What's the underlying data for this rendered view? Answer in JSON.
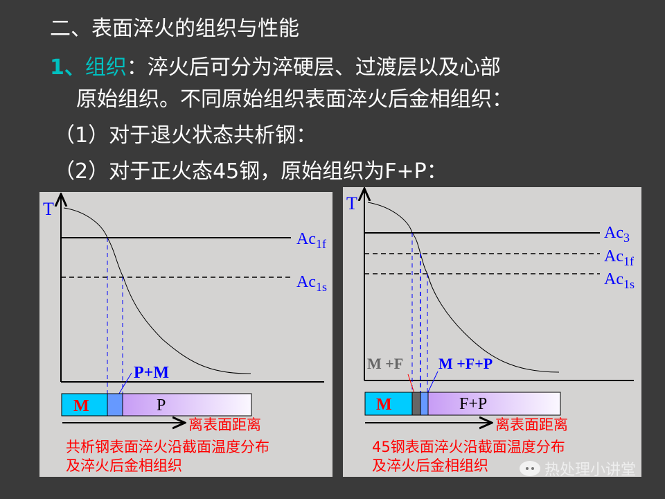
{
  "slide": {
    "title": "二、表面淬火的组织与性能",
    "point1_number": "1、",
    "point1_heading": "组织",
    "point1_colon": "：",
    "point1_text_line1": "淬火后可分为淬硬层、过渡层以及心部",
    "point1_text_line2": "原始组织。不同原始组织表面淬火后金相组织：",
    "item1": "（1）对于退火状态共析钢：",
    "item2": "（2）对于正火态45钢，原始组织为F+P："
  },
  "left_diagram": {
    "y_axis_label": "T",
    "line_upper": {
      "main": "Ac",
      "sub": "1f"
    },
    "line_lower": {
      "main": "Ac",
      "sub": "1s"
    },
    "zone_label": "P+M",
    "bar_zones": [
      "M",
      "",
      "P"
    ],
    "x_arrow_label": "离表面距离",
    "caption_line1": "共析钢表面淬火沿截面温度分布",
    "caption_line2": "及淬火后金相组织"
  },
  "right_diagram": {
    "y_axis_label": "T",
    "line_ac3": {
      "main": "Ac",
      "sub": "3"
    },
    "line_ac1f": {
      "main": "Ac",
      "sub": "1f"
    },
    "line_ac1s": {
      "main": "Ac",
      "sub": "1s"
    },
    "zone_label_1": "M +F",
    "zone_label_2": "M +F+P",
    "bar_zones": [
      "M",
      "",
      "",
      "F+P"
    ],
    "x_arrow_label": "离表面距离",
    "caption_line1": "45钢表面淬火沿截面温度分布",
    "caption_line2": "及淬火后金相组织"
  },
  "watermark": {
    "icon": "wechat-icon",
    "text": "热处理小讲堂"
  },
  "colors": {
    "background": "#3a3a3a",
    "accent": "#00c0c0",
    "label_blue": "#0000ff",
    "caption_red": "#ff0000",
    "martensite": "#00ccff"
  }
}
